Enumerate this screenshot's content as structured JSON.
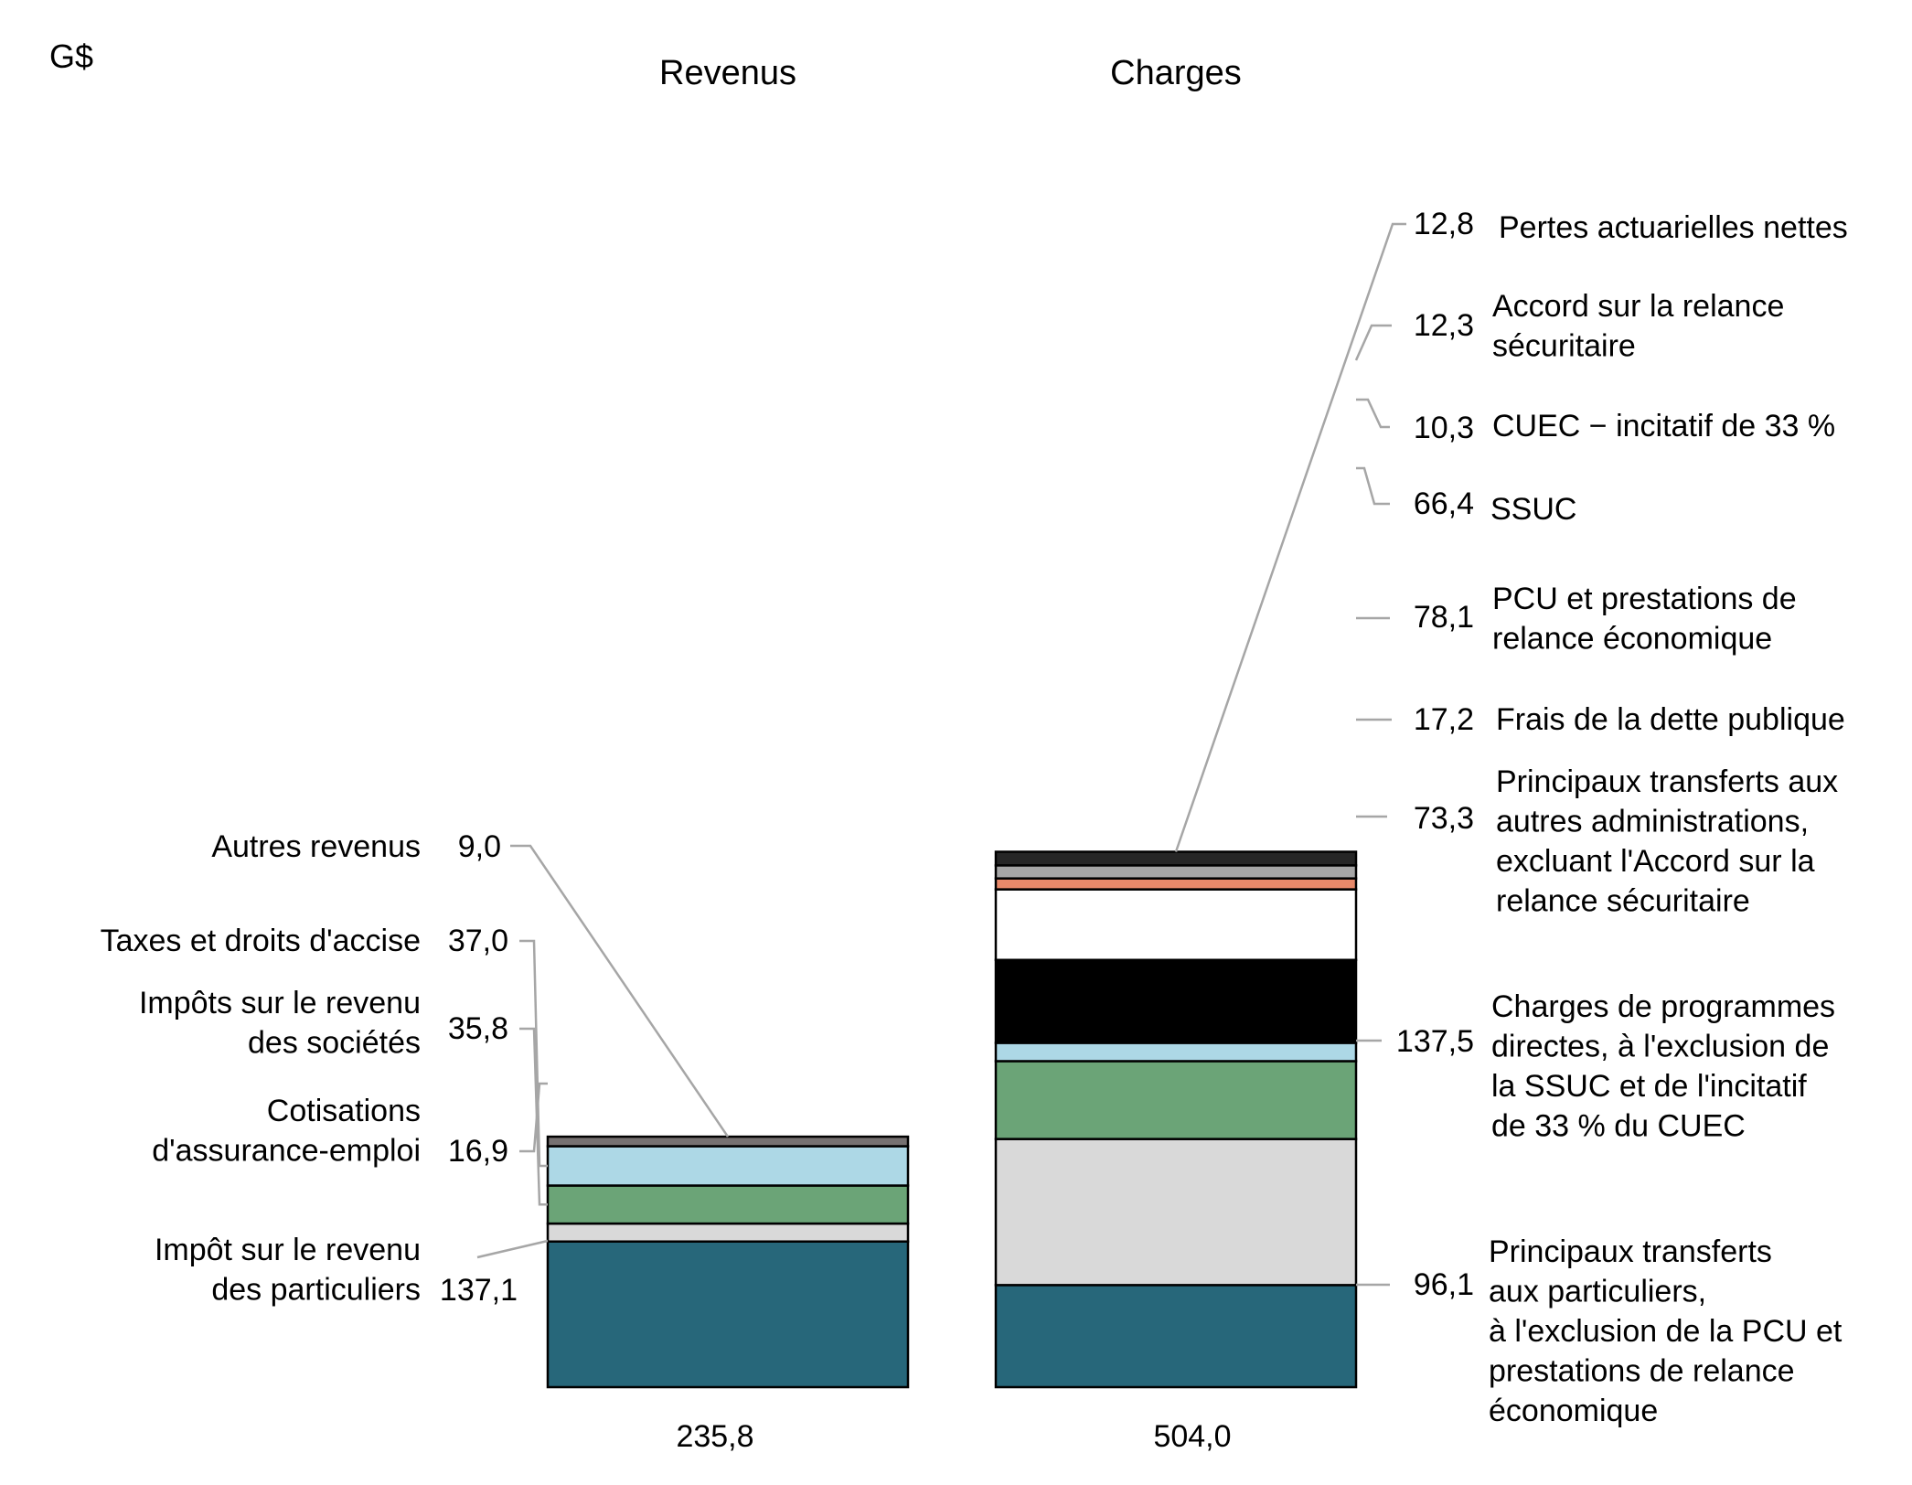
{
  "chart_data": {
    "type": "bar",
    "stacked": true,
    "unit": "G$",
    "categories": [
      "Revenus",
      "Charges"
    ],
    "totals": [
      "235,8",
      "504,0"
    ],
    "revenus": [
      {
        "name": "Impôt sur le revenu des particuliers",
        "label_lines": [
          "Impôt sur le revenu",
          "des particuliers"
        ],
        "value": 137.1,
        "value_label": "137,1",
        "color": "#27677a"
      },
      {
        "name": "Cotisations d'assurance-emploi",
        "label_lines": [
          "Cotisations",
          "d'assurance-emploi"
        ],
        "value": 16.9,
        "value_label": "16,9",
        "color": "#d9d9d9"
      },
      {
        "name": "Impôts sur le revenu des sociétés",
        "label_lines": [
          "Impôts sur le revenu",
          "des sociétés"
        ],
        "value": 35.8,
        "value_label": "35,8",
        "color": "#6ba477"
      },
      {
        "name": "Taxes et droits d'accise",
        "label_lines": [
          "Taxes et droits d'accise"
        ],
        "value": 37.0,
        "value_label": "37,0",
        "color": "#add8e6"
      },
      {
        "name": "Autres revenus",
        "label_lines": [
          "Autres revenus"
        ],
        "value": 9.0,
        "value_label": "9,0",
        "color": "#767171"
      }
    ],
    "charges": [
      {
        "name": "Principaux transferts aux particuliers, à l'exclusion de la PCU et prestations de relance économique",
        "label_lines": [
          "Principaux transferts",
          "aux particuliers,",
          "à l'exclusion de la PCU et",
          "prestations de relance",
          "économique"
        ],
        "value": 96.1,
        "value_label": "96,1",
        "color": "#27677a"
      },
      {
        "name": "Charges de programmes directes, à l'exclusion de la SSUC et de l'incitatif de 33 % du CUEC",
        "label_lines": [
          "Charges de programmes",
          "directes, à l'exclusion de",
          "la SSUC et de l'incitatif",
          "de 33 % du CUEC"
        ],
        "value": 137.5,
        "value_label": "137,5",
        "color": "#d9d9d9"
      },
      {
        "name": "Principaux transferts aux autres administrations, excluant l'Accord sur la relance sécuritaire",
        "label_lines": [
          "Principaux transferts aux",
          "autres administrations,",
          "excluant l'Accord sur la",
          "relance sécuritaire"
        ],
        "value": 73.3,
        "value_label": "73,3",
        "color": "#6ba477"
      },
      {
        "name": "Frais de la dette publique",
        "label_lines": [
          "Frais de la dette publique"
        ],
        "value": 17.2,
        "value_label": "17,2",
        "color": "#add8e6"
      },
      {
        "name": "PCU et prestations de relance économique",
        "label_lines": [
          "PCU et prestations de",
          "relance économique"
        ],
        "value": 78.1,
        "value_label": "78,1",
        "color": "#000000"
      },
      {
        "name": "SSUC",
        "label_lines": [
          "SSUC"
        ],
        "value": 66.4,
        "value_label": "66,4",
        "color": "#ffffff"
      },
      {
        "name": "CUEC − incitatif de 33 %",
        "label_lines": [
          "CUEC − incitatif de 33 %"
        ],
        "value": 10.3,
        "value_label": "10,3",
        "color": "#e8896a"
      },
      {
        "name": "Accord sur la relance sécuritaire",
        "label_lines": [
          "Accord sur la relance",
          "sécuritaire"
        ],
        "value": 12.3,
        "value_label": "12,3",
        "color": "#a6a6a6"
      },
      {
        "name": "Pertes actuarielles nettes",
        "label_lines": [
          "Pertes actuarielles nettes"
        ],
        "value": 12.8,
        "value_label": "12,8",
        "color": "#262626"
      }
    ],
    "legend": "none",
    "grid": false
  }
}
